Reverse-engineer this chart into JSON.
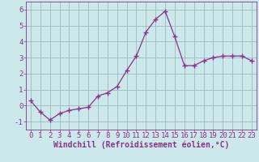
{
  "x": [
    0,
    1,
    2,
    3,
    4,
    5,
    6,
    7,
    8,
    9,
    10,
    11,
    12,
    13,
    14,
    15,
    16,
    17,
    18,
    19,
    20,
    21,
    22,
    23
  ],
  "y": [
    0.3,
    -0.4,
    -0.9,
    -0.5,
    -0.3,
    -0.2,
    -0.1,
    0.6,
    0.8,
    1.2,
    2.2,
    3.1,
    4.6,
    5.4,
    5.9,
    4.3,
    2.5,
    2.5,
    2.8,
    3.0,
    3.1,
    3.1,
    3.1,
    2.8
  ],
  "line_color": "#883388",
  "marker": "+",
  "marker_size": 4,
  "marker_color": "#883388",
  "bg_color": "#cce8ea",
  "grid_color": "#99bbbb",
  "xlabel": "Windchill (Refroidissement éolien,°C)",
  "xlabel_color": "#883388",
  "xlabel_fontsize": 7,
  "tick_color": "#883388",
  "tick_fontsize": 6.5,
  "ylim": [
    -1.5,
    6.5
  ],
  "xlim": [
    -0.5,
    23.5
  ],
  "yticks": [
    -1,
    0,
    1,
    2,
    3,
    4,
    5,
    6
  ],
  "xticks": [
    0,
    1,
    2,
    3,
    4,
    5,
    6,
    7,
    8,
    9,
    10,
    11,
    12,
    13,
    14,
    15,
    16,
    17,
    18,
    19,
    20,
    21,
    22,
    23
  ]
}
